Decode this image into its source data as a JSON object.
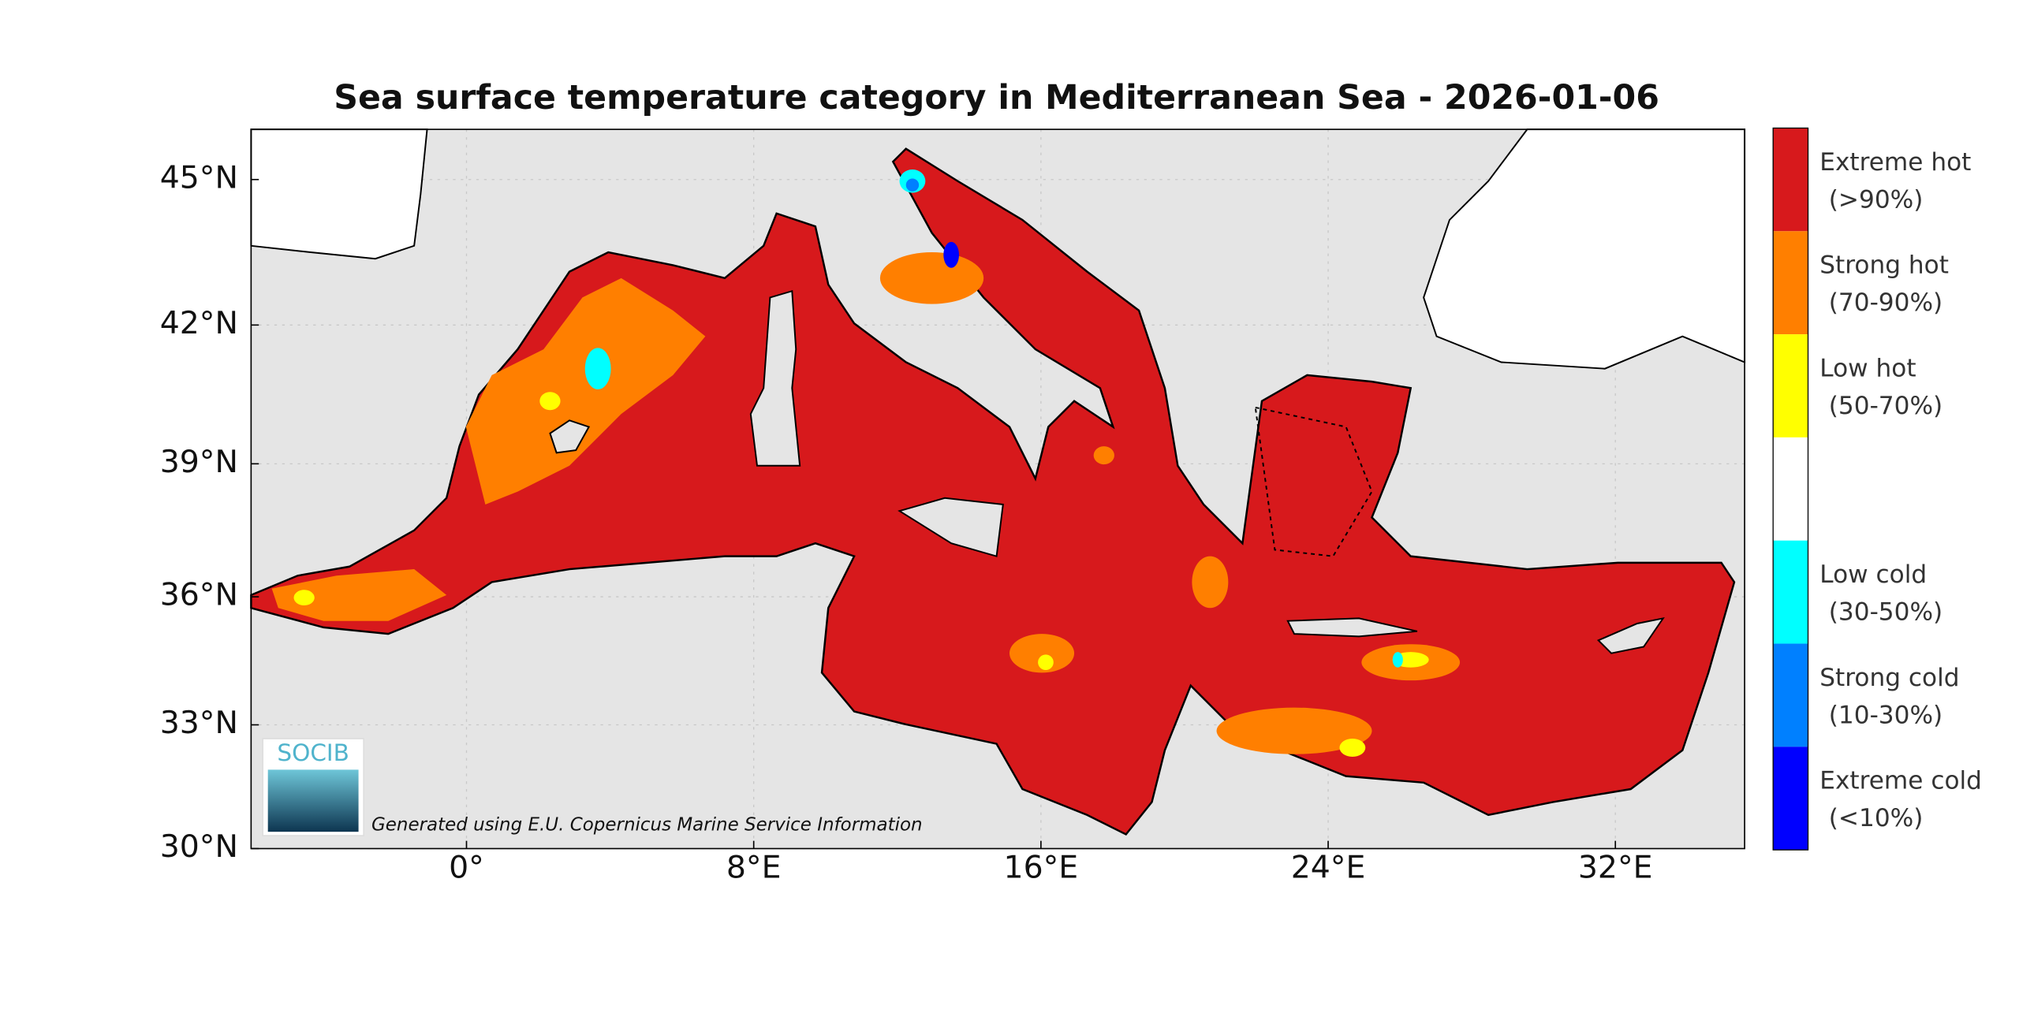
{
  "map": {
    "title": "Sea surface temperature category in Mediterranean Sea - 2026-01-06",
    "lonlim": [
      -6,
      35.6
    ],
    "latlim": [
      30,
      46
    ],
    "xticks": [
      {
        "value": 0,
        "label": "0°"
      },
      {
        "value": 8,
        "label": "8°E"
      },
      {
        "value": 16,
        "label": "16°E"
      },
      {
        "value": 24,
        "label": "24°E"
      },
      {
        "value": 32,
        "label": "32°E"
      }
    ],
    "yticks": [
      {
        "value": 30,
        "label": "30°N"
      },
      {
        "value": 33,
        "label": "33°N"
      },
      {
        "value": 36,
        "label": "36°N"
      },
      {
        "value": 39,
        "label": "39°N"
      },
      {
        "value": 42,
        "label": "42°N"
      },
      {
        "value": 45,
        "label": "45°N"
      }
    ],
    "grid": true,
    "legend": [
      {
        "color": "#d7191c",
        "label": [
          "Extreme hot",
          "(>90%)"
        ]
      },
      {
        "color": "#ff7f00",
        "label": [
          "Strong hot",
          "(70-90%)"
        ]
      },
      {
        "color": "#ffff00",
        "label": [
          "Low hot",
          "(50-70%)"
        ]
      },
      {
        "color": "#ffffff"
      },
      {
        "color": "#00ffff",
        "label": [
          "Low cold",
          "(30-50%)"
        ]
      },
      {
        "color": "#0080ff",
        "label": [
          "Strong cold",
          "(10-30%)"
        ]
      },
      {
        "color": "#0000ff",
        "label": [
          "Extreme cold",
          "(<10%)"
        ]
      }
    ],
    "logo": "SOCIB",
    "credit": "Generated using E.U. Copernicus Marine Service Information"
  }
}
